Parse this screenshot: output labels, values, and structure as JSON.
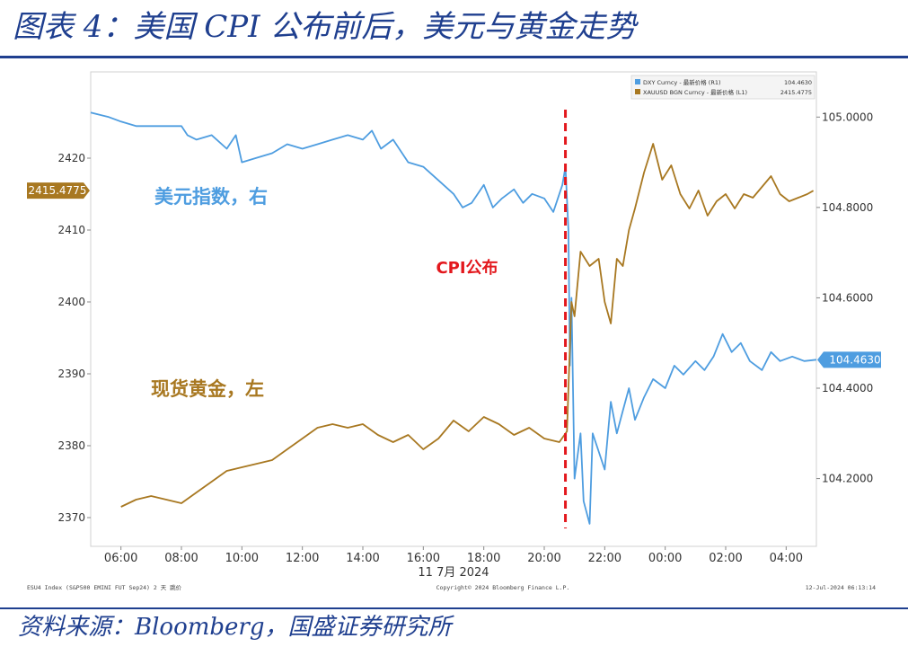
{
  "header": {
    "title": "图表 4：美国 CPI 公布前后，美元与黄金走势"
  },
  "footer": {
    "source": "资料来源：Bloomberg，国盛证券研究所"
  },
  "chart_data": {
    "type": "line",
    "title": "",
    "x_label_sub": "11 7月 2024",
    "x_ticks": [
      "06:00",
      "08:00",
      "10:00",
      "12:00",
      "14:00",
      "16:00",
      "18:00",
      "20:00",
      "22:00",
      "00:00",
      "02:00",
      "04:00"
    ],
    "x_range_hours": [
      5.0,
      29.0
    ],
    "left_axis": {
      "range": [
        2366,
        2432
      ],
      "ticks": [
        2370,
        2380,
        2390,
        2400,
        2410,
        2420
      ]
    },
    "right_axis": {
      "range": [
        104.05,
        105.1
      ],
      "ticks": [
        "104.2000",
        "104.4000",
        "104.6000",
        "104.8000",
        "105.0000"
      ]
    },
    "series": [
      {
        "name": "DXY Curncy - 最新价格 (R1)",
        "legend_value": "104.4630",
        "label": "美元指数，右",
        "axis": "right",
        "color": "#4e9de0",
        "points": [
          [
            5.0,
            105.01
          ],
          [
            5.6,
            105.0
          ],
          [
            6.0,
            104.99
          ],
          [
            6.5,
            104.98
          ],
          [
            7.0,
            104.98
          ],
          [
            7.5,
            104.98
          ],
          [
            8.0,
            104.98
          ],
          [
            8.2,
            104.96
          ],
          [
            8.5,
            104.95
          ],
          [
            9.0,
            104.96
          ],
          [
            9.5,
            104.93
          ],
          [
            9.8,
            104.96
          ],
          [
            10.0,
            104.9
          ],
          [
            10.5,
            104.91
          ],
          [
            11.0,
            104.92
          ],
          [
            11.5,
            104.94
          ],
          [
            12.0,
            104.93
          ],
          [
            12.5,
            104.94
          ],
          [
            13.0,
            104.95
          ],
          [
            13.5,
            104.96
          ],
          [
            14.0,
            104.95
          ],
          [
            14.3,
            104.97
          ],
          [
            14.6,
            104.93
          ],
          [
            15.0,
            104.95
          ],
          [
            15.5,
            104.9
          ],
          [
            16.0,
            104.89
          ],
          [
            16.5,
            104.86
          ],
          [
            17.0,
            104.83
          ],
          [
            17.3,
            104.8
          ],
          [
            17.6,
            104.81
          ],
          [
            18.0,
            104.85
          ],
          [
            18.3,
            104.8
          ],
          [
            18.6,
            104.82
          ],
          [
            19.0,
            104.84
          ],
          [
            19.3,
            104.81
          ],
          [
            19.6,
            104.83
          ],
          [
            20.0,
            104.82
          ],
          [
            20.3,
            104.79
          ],
          [
            20.6,
            104.85
          ],
          [
            20.7,
            104.89
          ],
          [
            20.8,
            104.75
          ],
          [
            20.85,
            104.45
          ],
          [
            20.9,
            104.6
          ],
          [
            21.0,
            104.2
          ],
          [
            21.2,
            104.3
          ],
          [
            21.3,
            104.15
          ],
          [
            21.5,
            104.1
          ],
          [
            21.6,
            104.3
          ],
          [
            21.8,
            104.26
          ],
          [
            22.0,
            104.22
          ],
          [
            22.2,
            104.37
          ],
          [
            22.4,
            104.3
          ],
          [
            22.6,
            104.35
          ],
          [
            22.8,
            104.4
          ],
          [
            23.0,
            104.33
          ],
          [
            23.3,
            104.38
          ],
          [
            23.6,
            104.42
          ],
          [
            24.0,
            104.4
          ],
          [
            24.3,
            104.45
          ],
          [
            24.6,
            104.43
          ],
          [
            25.0,
            104.46
          ],
          [
            25.3,
            104.44
          ],
          [
            25.6,
            104.47
          ],
          [
            25.9,
            104.52
          ],
          [
            26.2,
            104.48
          ],
          [
            26.5,
            104.5
          ],
          [
            26.8,
            104.46
          ],
          [
            27.2,
            104.44
          ],
          [
            27.5,
            104.48
          ],
          [
            27.8,
            104.46
          ],
          [
            28.2,
            104.47
          ],
          [
            28.6,
            104.46
          ],
          [
            29.0,
            104.463
          ]
        ]
      },
      {
        "name": "XAUUSD BGN Curncy - 最新价格 (L1)",
        "legend_value": "2415.4775",
        "label": "现货黄金，左",
        "axis": "left",
        "color": "#a87821",
        "points": [
          [
            6.0,
            2371.5
          ],
          [
            6.5,
            2372.5
          ],
          [
            7.0,
            2373.0
          ],
          [
            7.5,
            2372.5
          ],
          [
            8.0,
            2372.0
          ],
          [
            8.5,
            2373.5
          ],
          [
            9.0,
            2375.0
          ],
          [
            9.5,
            2376.5
          ],
          [
            10.0,
            2377.0
          ],
          [
            10.5,
            2377.5
          ],
          [
            11.0,
            2378.0
          ],
          [
            11.5,
            2379.5
          ],
          [
            12.0,
            2381.0
          ],
          [
            12.5,
            2382.5
          ],
          [
            13.0,
            2383.0
          ],
          [
            13.5,
            2382.5
          ],
          [
            14.0,
            2383.0
          ],
          [
            14.5,
            2381.5
          ],
          [
            15.0,
            2380.5
          ],
          [
            15.5,
            2381.5
          ],
          [
            16.0,
            2379.5
          ],
          [
            16.5,
            2381.0
          ],
          [
            17.0,
            2383.5
          ],
          [
            17.5,
            2382.0
          ],
          [
            18.0,
            2384.0
          ],
          [
            18.5,
            2383.0
          ],
          [
            19.0,
            2381.5
          ],
          [
            19.5,
            2382.5
          ],
          [
            20.0,
            2381.0
          ],
          [
            20.5,
            2380.5
          ],
          [
            20.75,
            2382.0
          ],
          [
            20.85,
            2394.0
          ],
          [
            20.9,
            2400.0
          ],
          [
            21.0,
            2398.0
          ],
          [
            21.2,
            2407.0
          ],
          [
            21.5,
            2405.0
          ],
          [
            21.8,
            2406.0
          ],
          [
            22.0,
            2400.0
          ],
          [
            22.2,
            2397.0
          ],
          [
            22.4,
            2406.0
          ],
          [
            22.6,
            2405.0
          ],
          [
            22.8,
            2410.0
          ],
          [
            23.0,
            2413.0
          ],
          [
            23.3,
            2418.0
          ],
          [
            23.6,
            2422.0
          ],
          [
            23.9,
            2417.0
          ],
          [
            24.2,
            2419.0
          ],
          [
            24.5,
            2415.0
          ],
          [
            24.8,
            2413.0
          ],
          [
            25.1,
            2415.5
          ],
          [
            25.4,
            2412.0
          ],
          [
            25.7,
            2414.0
          ],
          [
            26.0,
            2415.0
          ],
          [
            26.3,
            2413.0
          ],
          [
            26.6,
            2415.0
          ],
          [
            26.9,
            2414.5
          ],
          [
            27.2,
            2416.0
          ],
          [
            27.5,
            2417.5
          ],
          [
            27.8,
            2415.0
          ],
          [
            28.1,
            2414.0
          ],
          [
            28.4,
            2414.5
          ],
          [
            28.7,
            2415.0
          ],
          [
            28.9,
            2415.48
          ]
        ]
      }
    ],
    "annotations": [
      {
        "text": "CPI公布",
        "x_hour": 20.7,
        "color": "#e3181d"
      }
    ],
    "footnotes": {
      "left": "ESU4 Index (S&P500 EMINI FUT Sep24) 2 天 跳价",
      "center": "Copyright© 2024 Bloomberg Finance L.P.",
      "right": "12-Jul-2024 06:13:14"
    },
    "legend_position": "top-right",
    "grid": false
  }
}
